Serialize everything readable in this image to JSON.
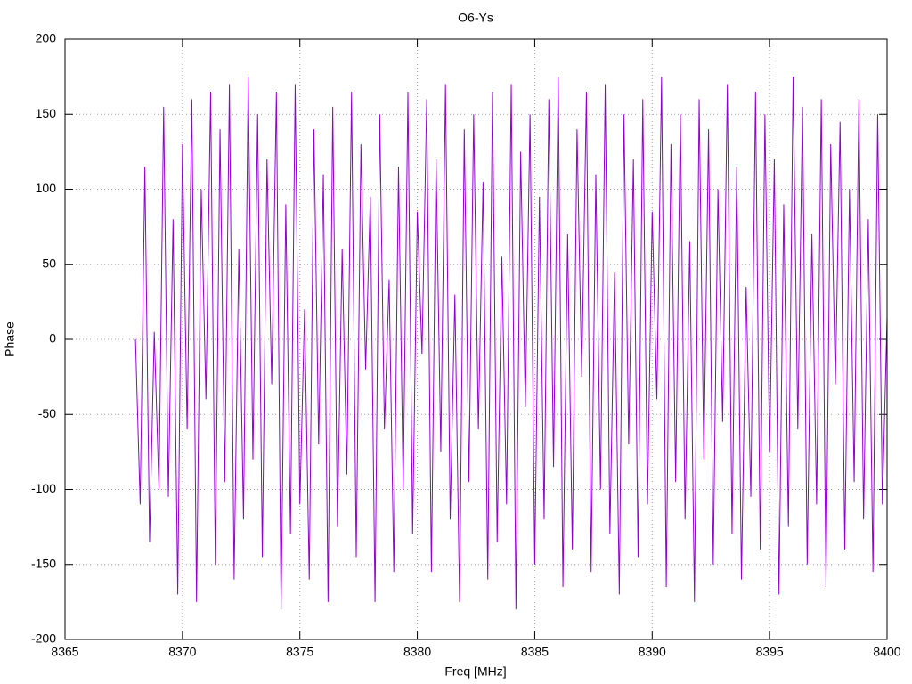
{
  "chart_data": {
    "type": "line",
    "title": "O6-Ys",
    "xlabel": "Freq [MHz]",
    "ylabel": "Phase",
    "color": "#9400d3",
    "grid": true,
    "xlim": [
      8365,
      8400
    ],
    "xticks": [
      8365,
      8370,
      8375,
      8380,
      8385,
      8390,
      8395,
      8400
    ],
    "ylim": [
      -200,
      200
    ],
    "yticks": [
      -200,
      -150,
      -100,
      -50,
      0,
      50,
      100,
      150,
      200
    ],
    "x": [
      8368,
      8368.2,
      8368.4,
      8368.6,
      8368.8,
      8369,
      8369.2,
      8369.4,
      8369.6,
      8369.8,
      8370,
      8370.2,
      8370.4,
      8370.6,
      8370.8,
      8371,
      8371.2,
      8371.4,
      8371.6,
      8371.8,
      8372,
      8372.2,
      8372.4,
      8372.6,
      8372.8,
      8373,
      8373.2,
      8373.4,
      8373.6,
      8373.8,
      8374,
      8374.2,
      8374.4,
      8374.6,
      8374.8,
      8375,
      8375.2,
      8375.4,
      8375.6,
      8375.8,
      8376,
      8376.2,
      8376.4,
      8376.6,
      8376.8,
      8377,
      8377.2,
      8377.4,
      8377.6,
      8377.8,
      8378,
      8378.2,
      8378.4,
      8378.6,
      8378.8,
      8379,
      8379.2,
      8379.4,
      8379.6,
      8379.8,
      8380,
      8380.2,
      8380.4,
      8380.6,
      8380.8,
      8381,
      8381.2,
      8381.4,
      8381.6,
      8381.8,
      8382,
      8382.2,
      8382.4,
      8382.6,
      8382.8,
      8383,
      8383.2,
      8383.4,
      8383.6,
      8383.8,
      8384,
      8384.2,
      8384.4,
      8384.6,
      8384.8,
      8385,
      8385.2,
      8385.4,
      8385.6,
      8385.8,
      8386,
      8386.2,
      8386.4,
      8386.6,
      8386.8,
      8387,
      8387.2,
      8387.4,
      8387.6,
      8387.8,
      8388,
      8388.2,
      8388.4,
      8388.6,
      8388.8,
      8389,
      8389.2,
      8389.4,
      8389.6,
      8389.8,
      8390,
      8390.2,
      8390.4,
      8390.6,
      8390.8,
      8391,
      8391.2,
      8391.4,
      8391.6,
      8391.8,
      8392,
      8392.2,
      8392.4,
      8392.6,
      8392.8,
      8393,
      8393.2,
      8393.4,
      8393.6,
      8393.8,
      8394,
      8394.2,
      8394.4,
      8394.6,
      8394.8,
      8395,
      8395.2,
      8395.4,
      8395.6,
      8395.8,
      8396,
      8396.2,
      8396.4,
      8396.6,
      8396.8,
      8397,
      8397.2,
      8397.4,
      8397.6,
      8397.8,
      8398,
      8398.2,
      8398.4,
      8398.6,
      8398.8,
      8399,
      8399.2,
      8399.4,
      8399.6,
      8399.8,
      8400
    ],
    "values": [
      0,
      -110,
      115,
      -135,
      5,
      -100,
      155,
      -105,
      80,
      -170,
      130,
      -60,
      160,
      -175,
      100,
      -40,
      165,
      -150,
      140,
      -95,
      170,
      -160,
      60,
      -120,
      175,
      -80,
      150,
      -145,
      120,
      -30,
      165,
      -180,
      90,
      -130,
      170,
      -110,
      20,
      -160,
      140,
      -70,
      110,
      -175,
      155,
      -125,
      60,
      -90,
      165,
      -145,
      130,
      -20,
      95,
      -175,
      150,
      -60,
      40,
      -155,
      115,
      -100,
      165,
      -130,
      85,
      -10,
      160,
      -155,
      120,
      -75,
      170,
      -120,
      30,
      -175,
      140,
      -95,
      150,
      -60,
      105,
      -160,
      165,
      -135,
      55,
      -110,
      170,
      -180,
      125,
      -45,
      150,
      -150,
      95,
      -120,
      160,
      -85,
      175,
      -165,
      70,
      -140,
      140,
      -25,
      165,
      -155,
      110,
      -100,
      170,
      -130,
      45,
      -170,
      150,
      -70,
      120,
      -145,
      160,
      -110,
      85,
      -40,
      175,
      -165,
      130,
      -95,
      150,
      -120,
      65,
      -175,
      160,
      -80,
      140,
      -150,
      100,
      -55,
      170,
      -130,
      115,
      -160,
      35,
      -105,
      165,
      -140,
      150,
      -75,
      120,
      -170,
      90,
      -125,
      175,
      -60,
      155,
      -150,
      70,
      -110,
      160,
      -165,
      130,
      -30,
      145,
      -140,
      100,
      -95,
      160,
      -120,
      80,
      -155,
      150,
      -110,
      15
    ]
  }
}
